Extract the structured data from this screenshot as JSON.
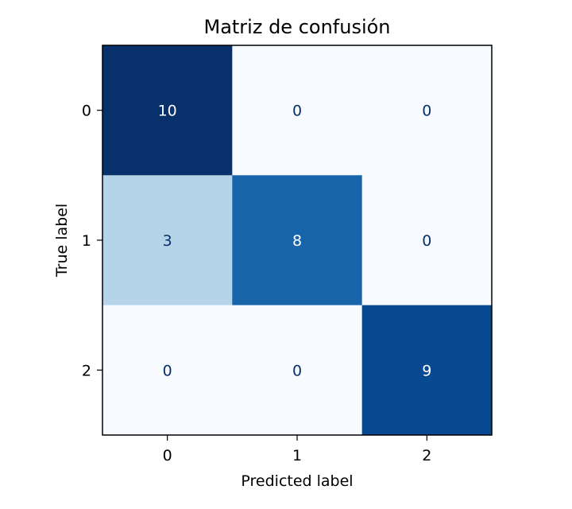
{
  "chart_data": {
    "type": "heatmap",
    "title": "Matriz de confusión",
    "xlabel": "Predicted label",
    "ylabel": "True label",
    "x_tick_labels": [
      "0",
      "1",
      "2"
    ],
    "y_tick_labels": [
      "0",
      "1",
      "2"
    ],
    "matrix": [
      [
        10,
        0,
        0
      ],
      [
        3,
        8,
        0
      ],
      [
        0,
        0,
        9
      ]
    ],
    "colormap": "Blues",
    "vmin": 0,
    "vmax": 10,
    "colorbar": false,
    "grid": false
  },
  "colors": {
    "cmap_stops": [
      "#f7fbff",
      "#deebf7",
      "#c6dbef",
      "#9ecae1",
      "#6baed6",
      "#4292c6",
      "#2171b5",
      "#08519c",
      "#08306b"
    ],
    "text_on_dark": "#ffffff",
    "text_on_light": "#08306b",
    "axis": "#000000"
  }
}
